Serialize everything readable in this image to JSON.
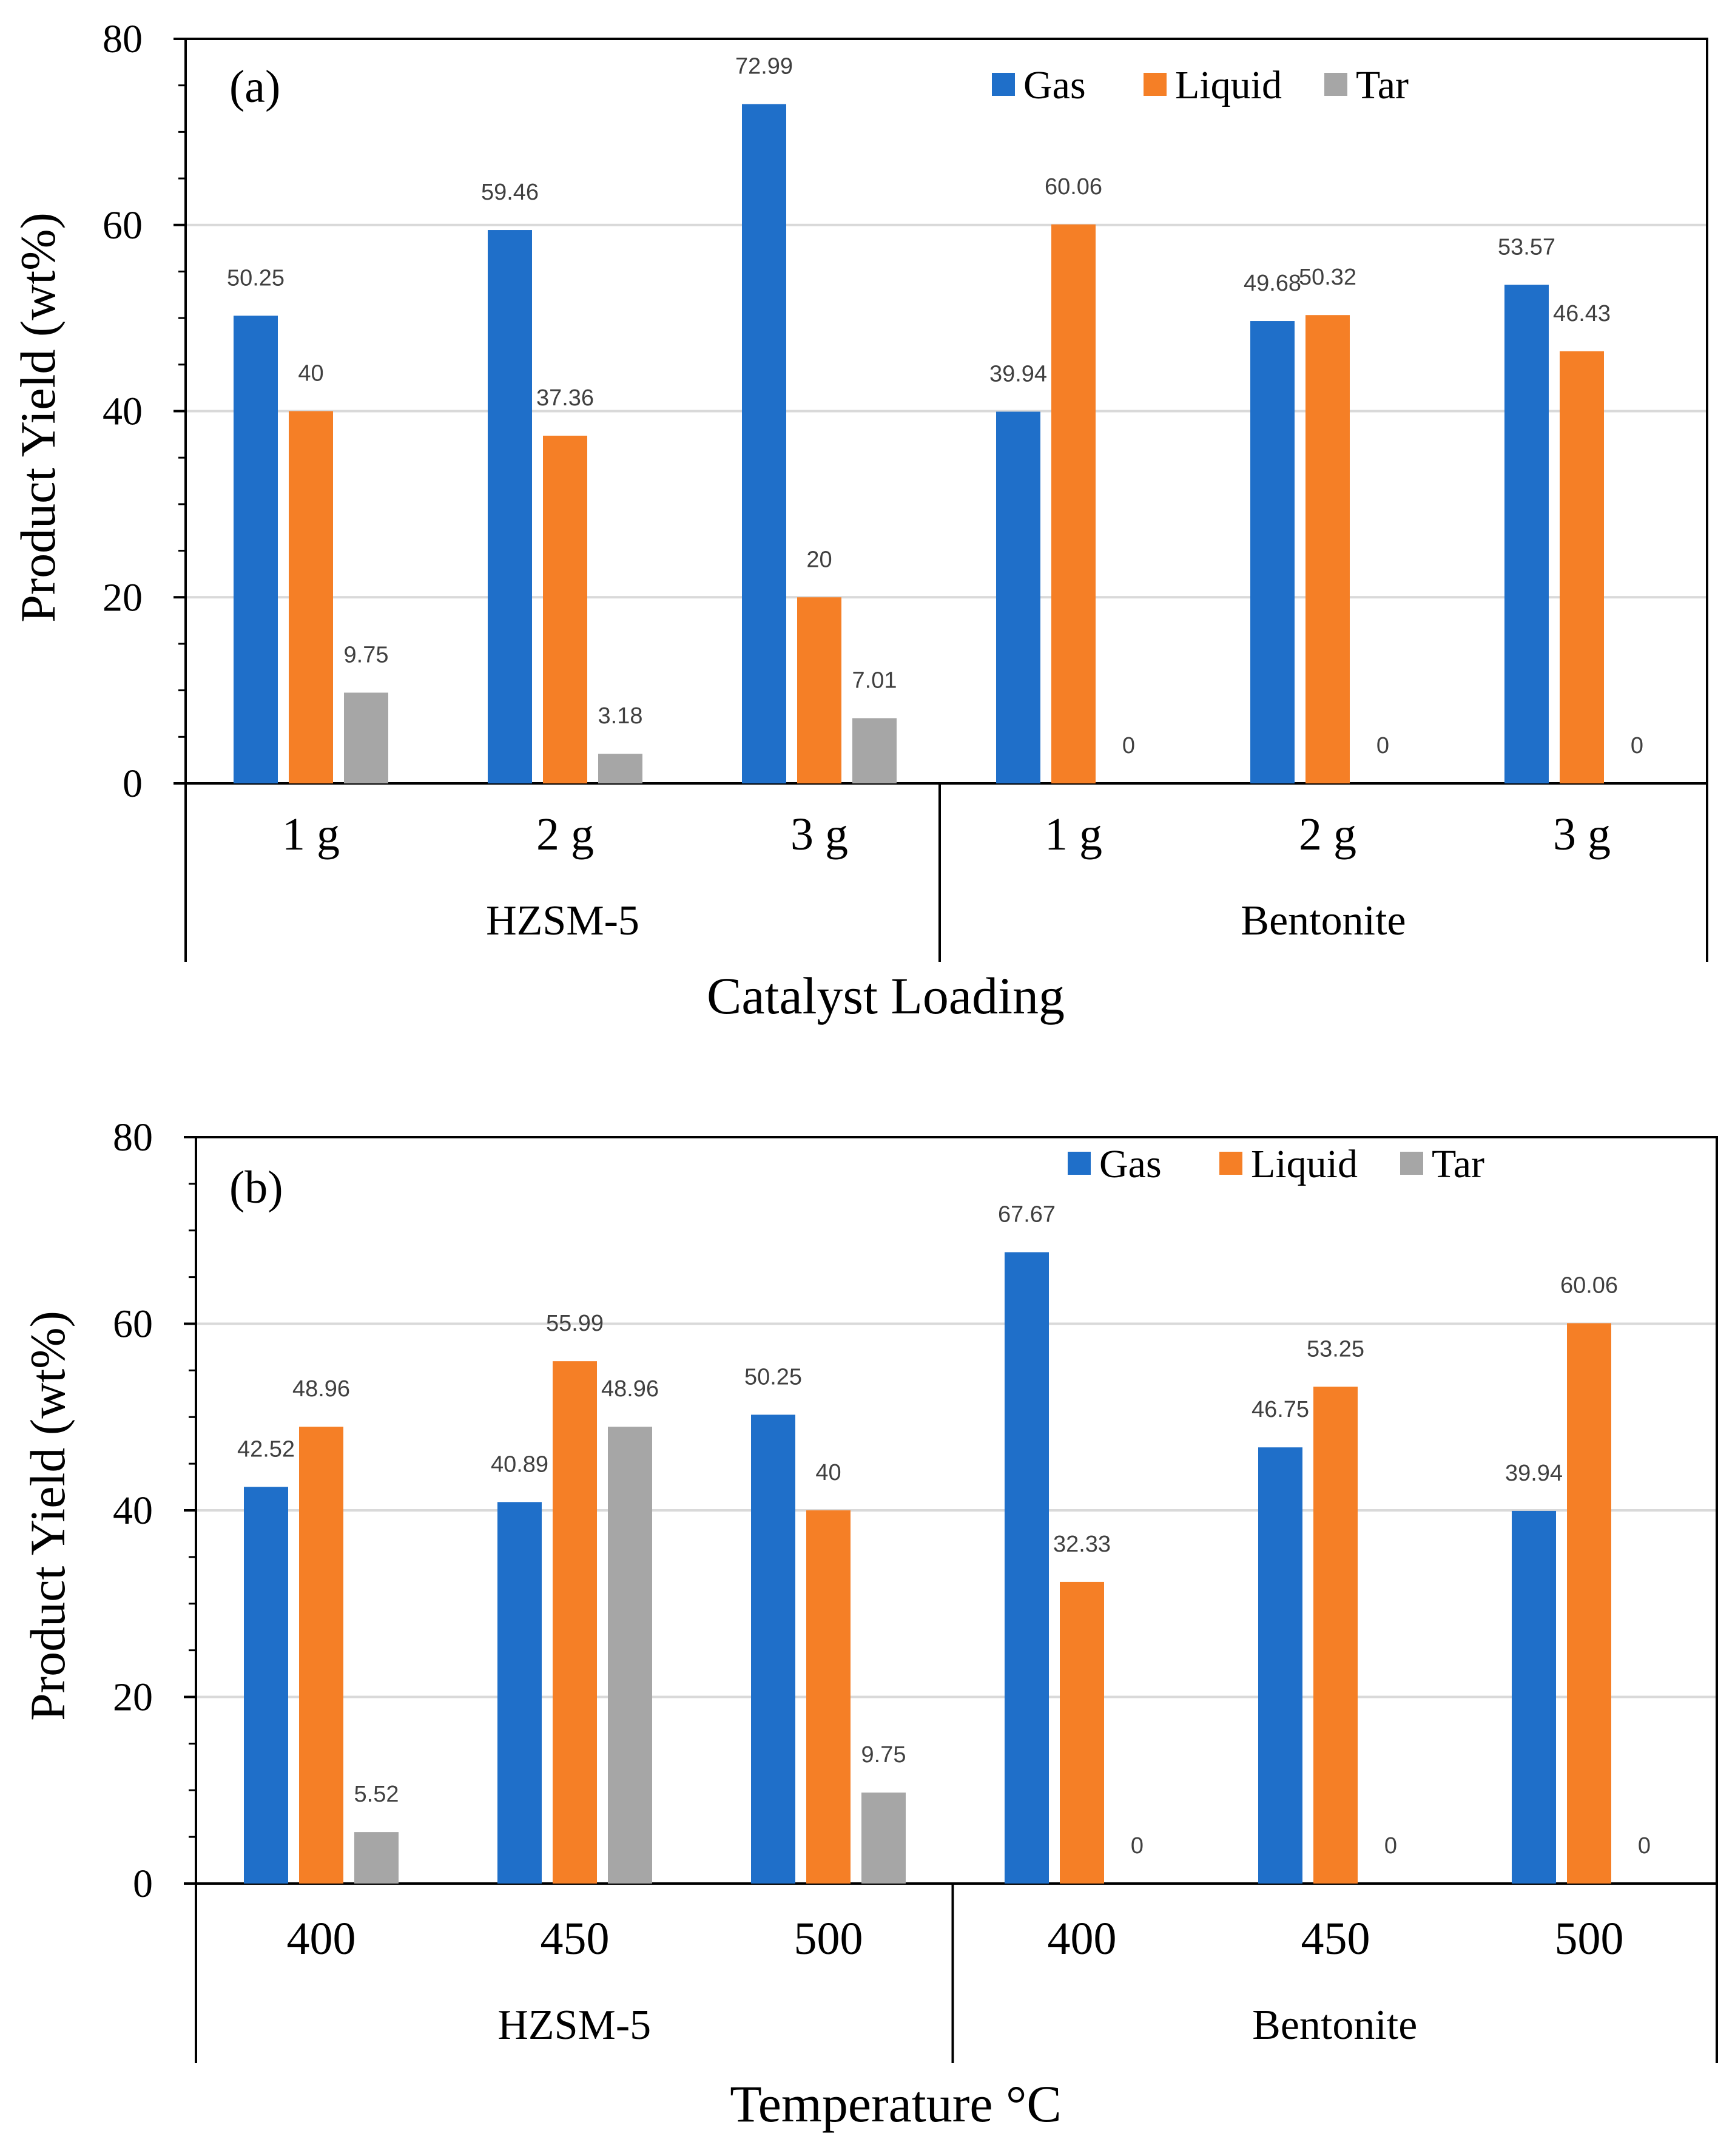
{
  "chart_data": [
    {
      "type": "bar",
      "panel_label": "(a)",
      "xlabel": "Catalyst Loading",
      "ylabel": "Product Yield (wt%)",
      "ylim": [
        0,
        80
      ],
      "yticks": [
        0,
        20,
        40,
        60,
        80
      ],
      "grid": true,
      "legend_position": "top-right",
      "groups": [
        "HZSM-5",
        "Bentonite"
      ],
      "categories": [
        "1 g",
        "2 g",
        "3 g",
        "1 g",
        "2 g",
        "3 g"
      ],
      "data_labels": [
        [
          "50.25",
          "59.46",
          "72.99",
          "39.94",
          "49.68",
          "53.57"
        ],
        [
          "40",
          "37.36",
          "20",
          "60.06",
          "50.32",
          "46.43"
        ],
        [
          "9.75",
          "3.18",
          "7.01",
          "0",
          "0",
          "0"
        ]
      ],
      "series": [
        {
          "name": "Gas",
          "color": "#1F6FC9",
          "values": [
            50.25,
            59.46,
            72.99,
            39.94,
            49.68,
            53.57
          ]
        },
        {
          "name": "Liquid",
          "color": "#F57F26",
          "values": [
            40,
            37.36,
            20,
            60.06,
            50.32,
            46.43
          ]
        },
        {
          "name": "Tar",
          "color": "#A6A6A6",
          "values": [
            9.75,
            3.18,
            7.01,
            0,
            0,
            0
          ]
        }
      ]
    },
    {
      "type": "bar",
      "panel_label": "(b)",
      "xlabel": "Temperature °C",
      "ylabel": "Product Yield (wt%)",
      "ylim": [
        0,
        80
      ],
      "yticks": [
        0,
        20,
        40,
        60,
        80
      ],
      "grid": true,
      "legend_position": "top-right",
      "groups": [
        "HZSM-5",
        "Bentonite"
      ],
      "categories": [
        "400",
        "450",
        "500",
        "400",
        "450",
        "500"
      ],
      "data_labels": [
        [
          "42.52",
          "40.89",
          "50.25",
          "67.67",
          "46.75",
          "39.94"
        ],
        [
          "48.96",
          "55.99",
          "40",
          "32.33",
          "53.25",
          "60.06"
        ],
        [
          "5.52",
          "48.96",
          "9.75",
          "0",
          "0",
          "0"
        ]
      ],
      "series": [
        {
          "name": "Gas",
          "color": "#1F6FC9",
          "values": [
            42.52,
            40.89,
            50.25,
            67.67,
            46.75,
            39.94
          ]
        },
        {
          "name": "Liquid",
          "color": "#F57F26",
          "values": [
            48.96,
            55.99,
            40,
            32.33,
            53.25,
            60.06
          ]
        },
        {
          "name": "Tar",
          "color": "#A6A6A6",
          "values": [
            5.52,
            48.96,
            9.75,
            0,
            0,
            0
          ]
        }
      ]
    }
  ]
}
